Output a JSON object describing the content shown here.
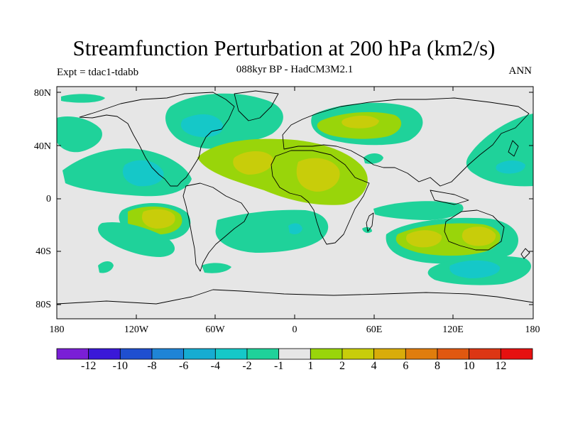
{
  "title": "Streamfunction Perturbation at 200 hPa (km2/s)",
  "subtitle": "088kyr BP - HadCM3M2.1",
  "left_label": "Expt = tdac1-tdabb",
  "right_label": "ANN",
  "lat_labels": [
    "80N",
    "40N",
    "0",
    "40S",
    "80S"
  ],
  "lon_labels": [
    "180",
    "120W",
    "60W",
    "0",
    "60E",
    "120E",
    "180"
  ],
  "colorbar": {
    "labels": [
      "-12",
      "-10",
      "-8",
      "-6",
      "-4",
      "-2",
      "-1",
      "1",
      "2",
      "4",
      "6",
      "8",
      "10",
      "12"
    ],
    "colors": [
      "#7a1fd6",
      "#3a18d8",
      "#1f4fd0",
      "#1f84d6",
      "#16acd2",
      "#15c8c8",
      "#1fd29a",
      "#e6e6e6",
      "#99d50a",
      "#c8cd0a",
      "#d9ac0a",
      "#e07d0d",
      "#e05810",
      "#dc3614",
      "#e61010"
    ]
  },
  "map_colors": {
    "background": "#e6e6e6",
    "neg1": "#1fd29a",
    "neg2": "#15c8c8",
    "neg3": "#16acd2",
    "pos1": "#99d50a",
    "pos2": "#c8cd0a"
  }
}
